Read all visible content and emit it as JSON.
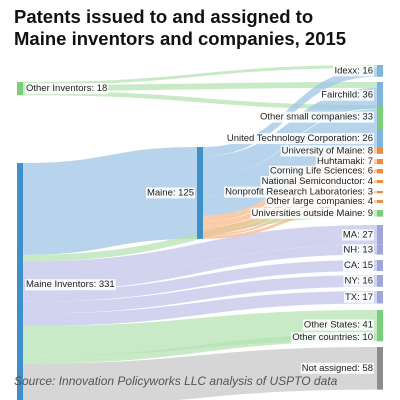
{
  "title_line1": "Patents issued to and assigned to",
  "title_line2": "Maine inventors and companies, 2015",
  "source": "Source: Innovation Policyworks LLC analysis of USPTO data",
  "colors": {
    "source_bar": "#3f8fca",
    "link_blue": "#9fc6e6",
    "link_green": "#b5e3b3",
    "link_orange": "#f7b98b",
    "link_purple": "#c3c6ea",
    "link_gray": "#c8c8c8",
    "node_green": "#7bcf7b",
    "node_blue": "#7fb4dc",
    "node_orange": "#f08a3c",
    "node_purple": "#9fa6dc",
    "node_gray": "#8c8c8c"
  },
  "chart_data": {
    "type": "sankey",
    "title": "Patents issued to and assigned to Maine inventors and companies, 2015",
    "unit": "patents",
    "sources": [
      {
        "id": "other_inventors",
        "label": "Other Inventors: 18",
        "value": 18
      },
      {
        "id": "maine_inventors",
        "label": "Maine Inventors: 331",
        "value": 331
      }
    ],
    "intermediate": [
      {
        "id": "maine",
        "label": "Maine: 125",
        "value": 125
      }
    ],
    "targets": [
      {
        "id": "idexx",
        "label": "Idexx: 16",
        "value": 16,
        "group": "company"
      },
      {
        "id": "fairchild",
        "label": "Fairchild: 36",
        "value": 36,
        "group": "company"
      },
      {
        "id": "other_small",
        "label": "Other small companies: 33",
        "value": 33,
        "group": "company"
      },
      {
        "id": "utc",
        "label": "United Technology Corporation: 26",
        "value": 26,
        "group": "company"
      },
      {
        "id": "univ_maine",
        "label": "University of Maine: 8",
        "value": 8,
        "group": "institution"
      },
      {
        "id": "huhtamaki",
        "label": "Huhtamaki: 7",
        "value": 7,
        "group": "institution"
      },
      {
        "id": "corning",
        "label": "Corning Life Sciences: 6",
        "value": 6,
        "group": "institution"
      },
      {
        "id": "natsemi",
        "label": "National Semiconductor: 4",
        "value": 4,
        "group": "institution"
      },
      {
        "id": "nonprofit",
        "label": "Nonprofit Research Laboratories: 3",
        "value": 3,
        "group": "institution"
      },
      {
        "id": "other_large",
        "label": "Other large companies: 4",
        "value": 4,
        "group": "institution"
      },
      {
        "id": "univ_outside",
        "label": "Universities outside Maine: 9",
        "value": 9,
        "group": "other"
      },
      {
        "id": "ma",
        "label": "MA: 27",
        "value": 27,
        "group": "state"
      },
      {
        "id": "nh",
        "label": "NH: 13",
        "value": 13,
        "group": "state"
      },
      {
        "id": "ca",
        "label": "CA: 15",
        "value": 15,
        "group": "state"
      },
      {
        "id": "ny",
        "label": "NY: 16",
        "value": 16,
        "group": "state"
      },
      {
        "id": "tx",
        "label": "TX: 17",
        "value": 17,
        "group": "state"
      },
      {
        "id": "other_states",
        "label": "Other States: 41",
        "value": 41,
        "group": "other"
      },
      {
        "id": "other_countries",
        "label": "Other countries: 10",
        "value": 10,
        "group": "other"
      },
      {
        "id": "not_assigned",
        "label": "Not assigned: 58",
        "value": 58,
        "group": "unassigned"
      }
    ],
    "links": [
      {
        "source": "other_inventors",
        "target": "idexx",
        "value": 4
      },
      {
        "source": "other_inventors",
        "target": "fairchild",
        "value": 8
      },
      {
        "source": "other_inventors",
        "target": "other_small",
        "value": 6
      },
      {
        "source": "maine_inventors",
        "target": "maine",
        "value": 125
      },
      {
        "source": "maine_inventors",
        "target": "univ_outside",
        "value": 9
      },
      {
        "source": "maine_inventors",
        "target": "ma",
        "value": 27
      },
      {
        "source": "maine_inventors",
        "target": "nh",
        "value": 13
      },
      {
        "source": "maine_inventors",
        "target": "ca",
        "value": 15
      },
      {
        "source": "maine_inventors",
        "target": "ny",
        "value": 16
      },
      {
        "source": "maine_inventors",
        "target": "tx",
        "value": 17
      },
      {
        "source": "maine_inventors",
        "target": "other_states",
        "value": 41
      },
      {
        "source": "maine_inventors",
        "target": "other_countries",
        "value": 10
      },
      {
        "source": "maine_inventors",
        "target": "not_assigned",
        "value": 58
      },
      {
        "source": "maine",
        "target": "idexx",
        "value": 12
      },
      {
        "source": "maine",
        "target": "fairchild",
        "value": 28
      },
      {
        "source": "maine",
        "target": "other_small",
        "value": 27
      },
      {
        "source": "maine",
        "target": "utc",
        "value": 26
      },
      {
        "source": "maine",
        "target": "univ_maine",
        "value": 8
      },
      {
        "source": "maine",
        "target": "huhtamaki",
        "value": 7
      },
      {
        "source": "maine",
        "target": "corning",
        "value": 6
      },
      {
        "source": "maine",
        "target": "natsemi",
        "value": 4
      },
      {
        "source": "maine",
        "target": "nonprofit",
        "value": 3
      },
      {
        "source": "maine",
        "target": "other_large",
        "value": 4
      }
    ]
  }
}
